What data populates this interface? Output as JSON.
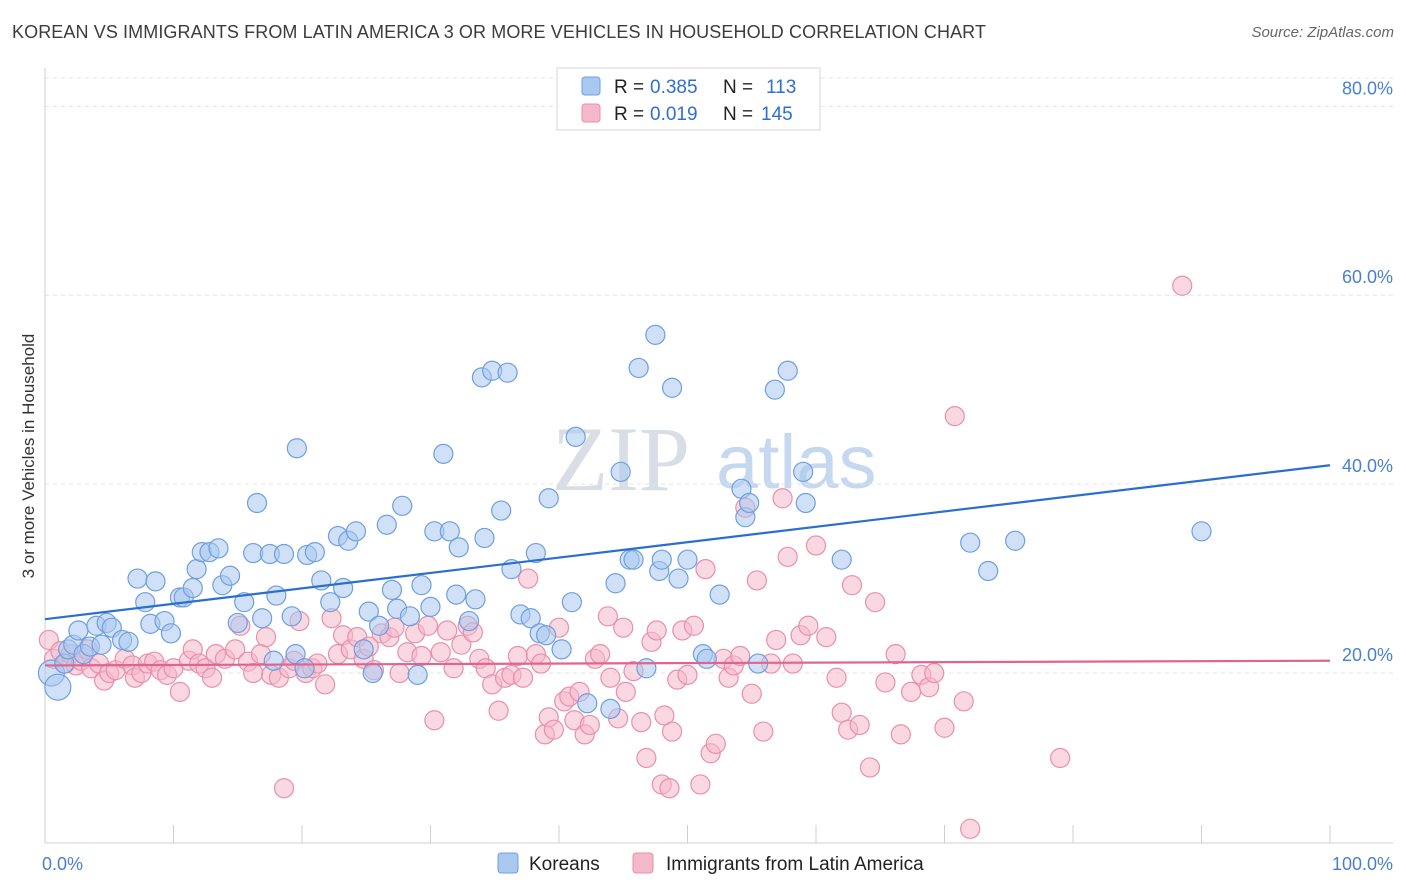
{
  "title": "KOREAN VS IMMIGRANTS FROM LATIN AMERICA 3 OR MORE VEHICLES IN HOUSEHOLD CORRELATION CHART",
  "source": "Source: ZipAtlas.com",
  "watermark": {
    "zip": "ZIP",
    "atlas": "atlas"
  },
  "colors": {
    "blue_fill": "#a9c8f0",
    "blue_stroke": "#6e9fe0",
    "blue_line": "#2a6fd0",
    "pink_fill": "#f5b8cb",
    "pink_stroke": "#e98fab",
    "pink_line": "#e0648f"
  },
  "legend": {
    "rows": [
      {
        "r_label": "R =",
        "r_value": "0.385",
        "n_label": "N =",
        "n_value": "113"
      },
      {
        "r_label": "R =",
        "r_value": "0.019",
        "n_label": "N =",
        "n_value": "145"
      }
    ]
  },
  "chart_data": {
    "type": "scatter",
    "ylabel": "3 or more Vehicles in Household",
    "x_tick_labels": [
      "0.0%",
      "100.0%"
    ],
    "y_tick_labels": [
      "20.0%",
      "40.0%",
      "60.0%",
      "80.0%"
    ],
    "y_ticks": [
      20,
      40,
      60,
      80
    ],
    "xlim": [
      0,
      100
    ],
    "ylim": [
      2,
      83
    ],
    "grid": true,
    "legend_position": "top-center",
    "series": [
      {
        "name": "Koreans",
        "trend": [
          [
            0,
            25.7
          ],
          [
            100,
            42.0
          ]
        ],
        "points": [
          [
            0.5,
            20.0
          ],
          [
            1.0,
            18.5
          ],
          [
            1.5,
            21.0
          ],
          [
            1.8,
            22.5
          ],
          [
            2.2,
            23.0
          ],
          [
            2.6,
            24.5
          ],
          [
            3.0,
            22.0
          ],
          [
            3.5,
            22.8
          ],
          [
            4.0,
            25.0
          ],
          [
            4.4,
            23.0
          ],
          [
            4.8,
            25.3
          ],
          [
            5.2,
            24.8
          ],
          [
            6.0,
            23.5
          ],
          [
            6.5,
            23.3
          ],
          [
            7.2,
            30.0
          ],
          [
            7.8,
            27.5
          ],
          [
            8.2,
            25.2
          ],
          [
            8.6,
            29.7
          ],
          [
            9.3,
            25.5
          ],
          [
            9.8,
            24.2
          ],
          [
            10.5,
            28.0
          ],
          [
            10.8,
            28.0
          ],
          [
            11.5,
            29.0
          ],
          [
            11.8,
            31.0
          ],
          [
            12.2,
            32.8
          ],
          [
            12.8,
            32.8
          ],
          [
            13.5,
            33.2
          ],
          [
            13.8,
            29.3
          ],
          [
            14.4,
            30.3
          ],
          [
            15.0,
            25.3
          ],
          [
            15.5,
            27.5
          ],
          [
            16.2,
            32.7
          ],
          [
            16.5,
            38.0
          ],
          [
            16.9,
            25.8
          ],
          [
            17.5,
            32.6
          ],
          [
            17.8,
            21.3
          ],
          [
            18.0,
            28.2
          ],
          [
            18.6,
            32.6
          ],
          [
            19.2,
            26.0
          ],
          [
            19.5,
            22.0
          ],
          [
            19.6,
            43.8
          ],
          [
            20.2,
            20.5
          ],
          [
            20.4,
            32.5
          ],
          [
            21.0,
            32.8
          ],
          [
            21.5,
            29.8
          ],
          [
            22.2,
            27.5
          ],
          [
            22.8,
            34.5
          ],
          [
            23.2,
            29.0
          ],
          [
            23.6,
            34.0
          ],
          [
            24.2,
            35.0
          ],
          [
            24.8,
            22.5
          ],
          [
            25.2,
            26.5
          ],
          [
            25.5,
            20.0
          ],
          [
            26.0,
            25.0
          ],
          [
            26.6,
            35.7
          ],
          [
            27.0,
            28.8
          ],
          [
            27.4,
            26.8
          ],
          [
            27.8,
            37.7
          ],
          [
            28.4,
            26.0
          ],
          [
            29.0,
            19.8
          ],
          [
            29.3,
            29.3
          ],
          [
            30.0,
            27.0
          ],
          [
            30.3,
            35.0
          ],
          [
            31.0,
            43.2
          ],
          [
            31.5,
            35.0
          ],
          [
            32.0,
            28.3
          ],
          [
            32.2,
            33.3
          ],
          [
            33.0,
            25.5
          ],
          [
            33.5,
            27.8
          ],
          [
            34.0,
            51.3
          ],
          [
            34.2,
            34.3
          ],
          [
            34.8,
            52.0
          ],
          [
            35.5,
            37.2
          ],
          [
            36.0,
            51.8
          ],
          [
            36.3,
            31.0
          ],
          [
            37.0,
            26.2
          ],
          [
            37.8,
            25.8
          ],
          [
            38.2,
            32.7
          ],
          [
            38.5,
            24.2
          ],
          [
            39.0,
            24.0
          ],
          [
            39.2,
            38.5
          ],
          [
            40.2,
            22.5
          ],
          [
            41.3,
            45.0
          ],
          [
            41.0,
            27.5
          ],
          [
            42.2,
            16.8
          ],
          [
            44.0,
            16.2
          ],
          [
            44.4,
            29.5
          ],
          [
            44.8,
            41.3
          ],
          [
            45.5,
            32.0
          ],
          [
            45.8,
            32.0
          ],
          [
            46.2,
            52.3
          ],
          [
            46.8,
            20.5
          ],
          [
            47.5,
            55.8
          ],
          [
            47.8,
            30.8
          ],
          [
            48.0,
            32.0
          ],
          [
            48.8,
            50.2
          ],
          [
            49.3,
            30.0
          ],
          [
            50.0,
            32.0
          ],
          [
            51.2,
            22.0
          ],
          [
            51.5,
            21.5
          ],
          [
            52.5,
            28.3
          ],
          [
            54.2,
            39.5
          ],
          [
            54.5,
            36.5
          ],
          [
            54.8,
            38.0
          ],
          [
            55.5,
            21.0
          ],
          [
            56.8,
            50.0
          ],
          [
            57.8,
            52.0
          ],
          [
            59.0,
            41.3
          ],
          [
            59.2,
            38.0
          ],
          [
            62.0,
            32.0
          ],
          [
            72.0,
            33.8
          ],
          [
            73.4,
            30.8
          ],
          [
            75.5,
            34.0
          ],
          [
            90.0,
            35.0
          ]
        ]
      },
      {
        "name": "Immigrants from Latin America",
        "trend": [
          [
            0,
            20.8
          ],
          [
            100,
            21.3
          ]
        ],
        "points": [
          [
            0.3,
            23.5
          ],
          [
            0.7,
            21.5
          ],
          [
            1.2,
            22.3
          ],
          [
            1.6,
            21.0
          ],
          [
            2.0,
            22.0
          ],
          [
            2.4,
            20.8
          ],
          [
            2.8,
            21.3
          ],
          [
            3.3,
            22.5
          ],
          [
            3.6,
            20.5
          ],
          [
            4.2,
            21.0
          ],
          [
            4.6,
            19.2
          ],
          [
            5.0,
            20.0
          ],
          [
            5.5,
            20.3
          ],
          [
            6.2,
            21.5
          ],
          [
            6.8,
            20.8
          ],
          [
            7.0,
            19.5
          ],
          [
            7.5,
            20.0
          ],
          [
            8.0,
            21.0
          ],
          [
            8.5,
            21.2
          ],
          [
            9.0,
            20.3
          ],
          [
            9.5,
            19.8
          ],
          [
            10.0,
            20.5
          ],
          [
            10.5,
            18.0
          ],
          [
            11.2,
            21.3
          ],
          [
            11.5,
            22.5
          ],
          [
            12.0,
            21.0
          ],
          [
            12.5,
            20.5
          ],
          [
            13.0,
            19.5
          ],
          [
            13.3,
            22.0
          ],
          [
            14.0,
            21.5
          ],
          [
            14.8,
            22.5
          ],
          [
            15.2,
            25.0
          ],
          [
            15.8,
            21.2
          ],
          [
            16.2,
            20.0
          ],
          [
            16.8,
            22.0
          ],
          [
            17.2,
            23.8
          ],
          [
            17.6,
            19.8
          ],
          [
            18.2,
            19.5
          ],
          [
            18.6,
            7.8
          ],
          [
            19.0,
            20.5
          ],
          [
            19.4,
            21.3
          ],
          [
            19.8,
            25.5
          ],
          [
            20.3,
            20.0
          ],
          [
            20.8,
            20.5
          ],
          [
            21.2,
            21.0
          ],
          [
            21.8,
            18.8
          ],
          [
            22.3,
            25.8
          ],
          [
            22.8,
            22.0
          ],
          [
            23.2,
            24.0
          ],
          [
            23.8,
            22.5
          ],
          [
            24.3,
            23.8
          ],
          [
            24.8,
            21.5
          ],
          [
            25.2,
            22.8
          ],
          [
            25.6,
            20.3
          ],
          [
            26.2,
            24.2
          ],
          [
            26.8,
            23.8
          ],
          [
            27.2,
            24.8
          ],
          [
            27.6,
            20.0
          ],
          [
            28.2,
            22.2
          ],
          [
            28.8,
            24.2
          ],
          [
            29.3,
            21.8
          ],
          [
            29.8,
            25.0
          ],
          [
            30.3,
            15.0
          ],
          [
            30.8,
            22.2
          ],
          [
            31.3,
            24.5
          ],
          [
            31.8,
            20.5
          ],
          [
            32.4,
            23.0
          ],
          [
            32.9,
            25.0
          ],
          [
            33.3,
            24.3
          ],
          [
            33.8,
            21.5
          ],
          [
            34.3,
            20.5
          ],
          [
            34.8,
            18.8
          ],
          [
            35.3,
            16.0
          ],
          [
            35.8,
            19.5
          ],
          [
            36.3,
            19.8
          ],
          [
            36.8,
            21.8
          ],
          [
            37.2,
            19.5
          ],
          [
            37.6,
            30.0
          ],
          [
            38.2,
            22.0
          ],
          [
            38.6,
            21.0
          ],
          [
            38.9,
            13.5
          ],
          [
            39.2,
            15.3
          ],
          [
            39.6,
            14.0
          ],
          [
            40.0,
            24.8
          ],
          [
            40.4,
            17.0
          ],
          [
            40.8,
            17.5
          ],
          [
            41.2,
            15.0
          ],
          [
            41.6,
            18.0
          ],
          [
            42.0,
            13.5
          ],
          [
            42.4,
            14.5
          ],
          [
            42.8,
            21.5
          ],
          [
            43.2,
            22.0
          ],
          [
            43.8,
            26.0
          ],
          [
            44.0,
            19.5
          ],
          [
            44.6,
            15.2
          ],
          [
            45.0,
            24.8
          ],
          [
            45.2,
            18.0
          ],
          [
            45.8,
            20.2
          ],
          [
            46.4,
            14.8
          ],
          [
            46.8,
            11.0
          ],
          [
            47.2,
            23.3
          ],
          [
            47.6,
            24.5
          ],
          [
            48.0,
            8.2
          ],
          [
            48.2,
            15.5
          ],
          [
            48.6,
            7.8
          ],
          [
            48.8,
            13.8
          ],
          [
            49.2,
            19.3
          ],
          [
            49.6,
            24.5
          ],
          [
            50.0,
            19.8
          ],
          [
            50.5,
            25.0
          ],
          [
            51.0,
            8.2
          ],
          [
            51.4,
            31.0
          ],
          [
            51.8,
            11.5
          ],
          [
            52.2,
            12.5
          ],
          [
            52.8,
            21.5
          ],
          [
            53.2,
            19.5
          ],
          [
            53.6,
            20.8
          ],
          [
            54.1,
            21.8
          ],
          [
            54.5,
            37.5
          ],
          [
            55.0,
            17.8
          ],
          [
            55.4,
            29.8
          ],
          [
            55.9,
            13.8
          ],
          [
            56.5,
            21.0
          ],
          [
            56.9,
            23.5
          ],
          [
            57.4,
            38.5
          ],
          [
            57.8,
            32.3
          ],
          [
            58.2,
            21.0
          ],
          [
            58.8,
            24.0
          ],
          [
            59.4,
            25.0
          ],
          [
            60.0,
            33.5
          ],
          [
            60.8,
            23.8
          ],
          [
            61.6,
            19.5
          ],
          [
            62.0,
            15.8
          ],
          [
            62.5,
            14.0
          ],
          [
            62.8,
            29.3
          ],
          [
            63.4,
            14.5
          ],
          [
            64.2,
            10.0
          ],
          [
            64.6,
            27.5
          ],
          [
            65.4,
            19.0
          ],
          [
            66.2,
            22.0
          ],
          [
            66.6,
            13.5
          ],
          [
            67.4,
            18.0
          ],
          [
            68.2,
            19.8
          ],
          [
            68.8,
            18.5
          ],
          [
            69.2,
            20.0
          ],
          [
            70.0,
            14.2
          ],
          [
            70.8,
            47.2
          ],
          [
            71.5,
            17.0
          ],
          [
            72.0,
            3.5
          ],
          [
            79.0,
            11.0
          ],
          [
            88.5,
            61.0
          ]
        ]
      }
    ]
  },
  "bottom_legend": {
    "items": [
      "Koreans",
      "Immigrants from Latin America"
    ]
  }
}
